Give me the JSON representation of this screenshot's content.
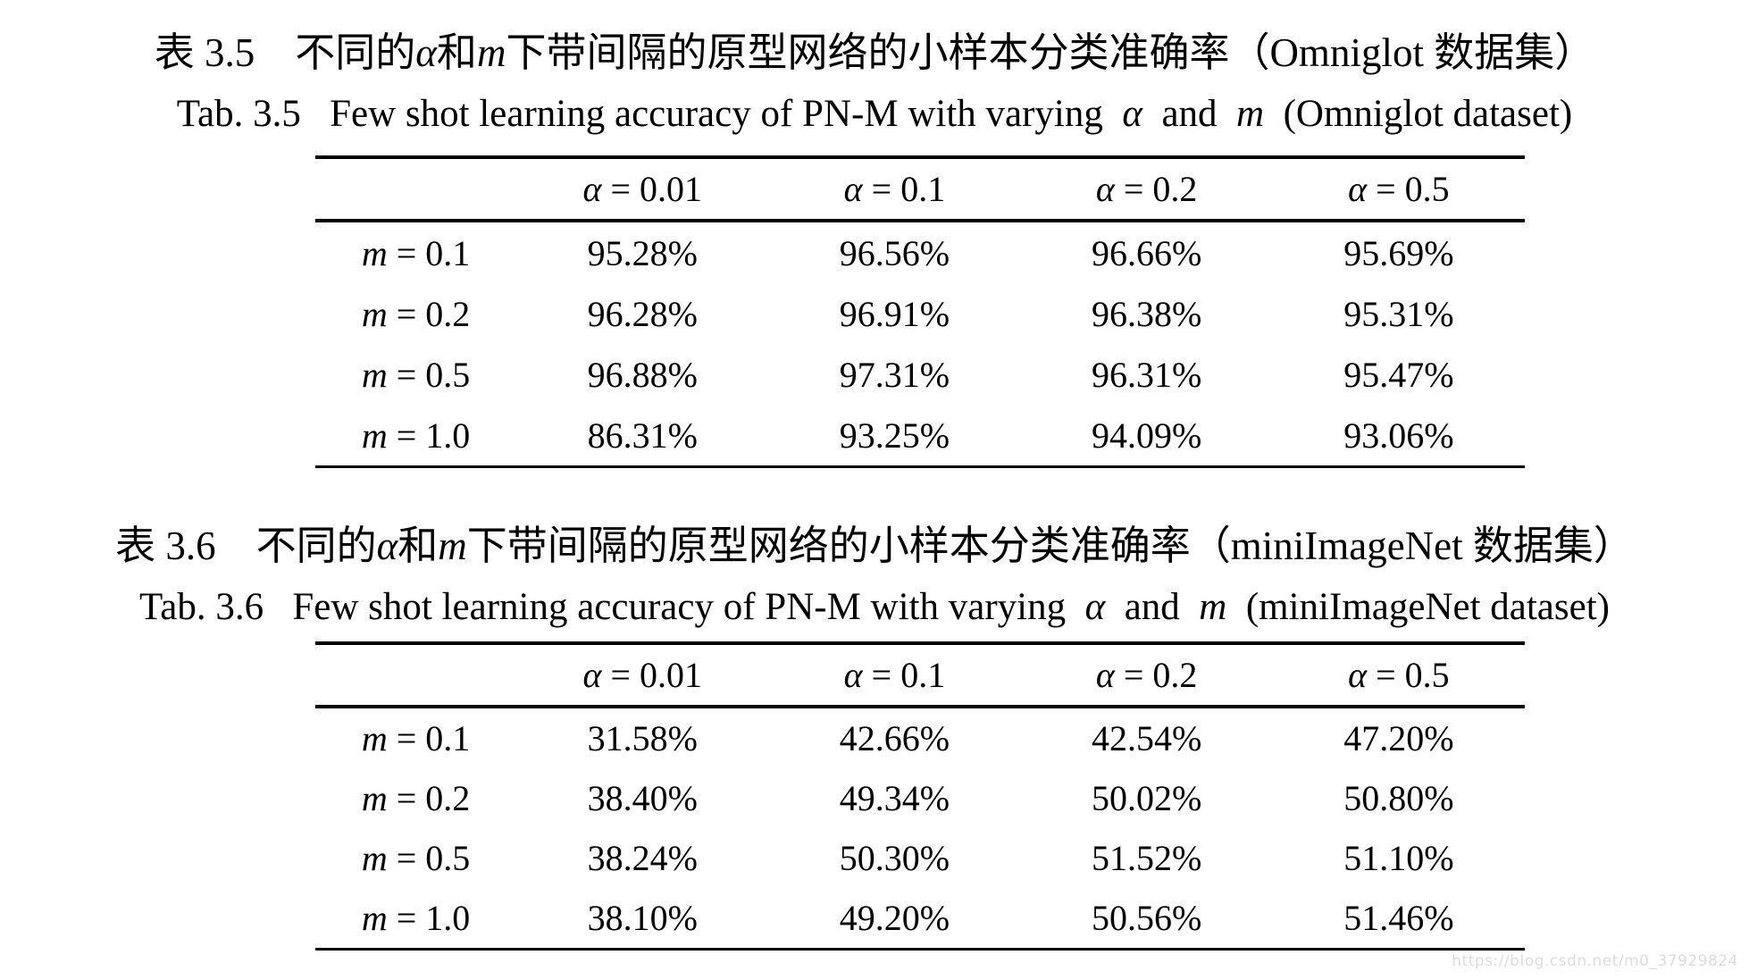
{
  "colors": {
    "background": "#ffffff",
    "text": "#000000",
    "rule": "#000000",
    "watermark": "#dcdcdc"
  },
  "watermark_text": "https://blog.csdn.net/m0_37929824",
  "tables": [
    {
      "title_cn_segments": [
        {
          "t": "表 3.5　不同的"
        },
        {
          "t": "α",
          "i": 1
        },
        {
          "t": "和"
        },
        {
          "t": "m",
          "i": 1
        },
        {
          "t": "下带间隔的原型网络的小样本分类准确率（Omniglot 数据集）"
        }
      ],
      "title_en_segments": [
        {
          "t": "Tab. 3.5   Few shot learning accuracy of PN-M with varying  "
        },
        {
          "t": "α",
          "i": 1
        },
        {
          "t": "  and  "
        },
        {
          "t": "m",
          "i": 1
        },
        {
          "t": "  (Omniglot dataset)"
        }
      ],
      "col_headers": [
        {
          "v": "α",
          "eq": "= 0.01"
        },
        {
          "v": "α",
          "eq": "= 0.1"
        },
        {
          "v": "α",
          "eq": "= 0.2"
        },
        {
          "v": "α",
          "eq": "= 0.5"
        }
      ],
      "rows": [
        {
          "v": "m",
          "eq": "= 0.1",
          "values": [
            "95.28%",
            "96.56%",
            "96.66%",
            "95.69%"
          ]
        },
        {
          "v": "m",
          "eq": "= 0.2",
          "values": [
            "96.28%",
            "96.91%",
            "96.38%",
            "95.31%"
          ]
        },
        {
          "v": "m",
          "eq": "= 0.5",
          "values": [
            "96.88%",
            "97.31%",
            "96.31%",
            "95.47%"
          ]
        },
        {
          "v": "m",
          "eq": "= 1.0",
          "values": [
            "86.31%",
            "93.25%",
            "94.09%",
            "93.06%"
          ]
        }
      ]
    },
    {
      "title_cn_segments": [
        {
          "t": "表 3.6　不同的"
        },
        {
          "t": "α",
          "i": 1
        },
        {
          "t": "和"
        },
        {
          "t": "m",
          "i": 1
        },
        {
          "t": "下带间隔的原型网络的小样本分类准确率（miniImageNet 数据集）"
        }
      ],
      "title_en_segments": [
        {
          "t": "Tab. 3.6   Few shot learning accuracy of PN-M with varying  "
        },
        {
          "t": "α",
          "i": 1
        },
        {
          "t": "  and  "
        },
        {
          "t": "m",
          "i": 1
        },
        {
          "t": "  (miniImageNet dataset)"
        }
      ],
      "col_headers": [
        {
          "v": "α",
          "eq": "= 0.01"
        },
        {
          "v": "α",
          "eq": "= 0.1"
        },
        {
          "v": "α",
          "eq": "= 0.2"
        },
        {
          "v": "α",
          "eq": "= 0.5"
        }
      ],
      "rows": [
        {
          "v": "m",
          "eq": "= 0.1",
          "values": [
            "31.58%",
            "42.66%",
            "42.54%",
            "47.20%"
          ]
        },
        {
          "v": "m",
          "eq": "= 0.2",
          "values": [
            "38.40%",
            "49.34%",
            "50.02%",
            "50.80%"
          ]
        },
        {
          "v": "m",
          "eq": "= 0.5",
          "values": [
            "38.24%",
            "50.30%",
            "51.52%",
            "51.10%"
          ]
        },
        {
          "v": "m",
          "eq": "= 1.0",
          "values": [
            "38.10%",
            "49.20%",
            "50.56%",
            "51.46%"
          ]
        }
      ]
    }
  ]
}
